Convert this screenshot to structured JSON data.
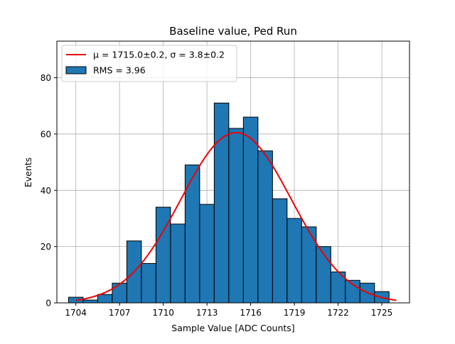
{
  "chart_data": {
    "type": "bar",
    "title": "Baseline value, Ped Run",
    "xlabel": "Sample Value [ADC Counts]",
    "ylabel": "Events",
    "xlim": [
      1702.7,
      1726.9
    ],
    "ylim": [
      0,
      93
    ],
    "grid": true,
    "xticks": [
      1704,
      1707,
      1710,
      1713,
      1716,
      1719,
      1722,
      1725
    ],
    "yticks": [
      0,
      20,
      40,
      60,
      80
    ],
    "bin_width": 1,
    "bins": [
      {
        "x": 1704,
        "count": 2
      },
      {
        "x": 1705,
        "count": 1
      },
      {
        "x": 1706,
        "count": 3
      },
      {
        "x": 1707,
        "count": 7
      },
      {
        "x": 1708,
        "count": 22
      },
      {
        "x": 1709,
        "count": 14
      },
      {
        "x": 1710,
        "count": 34
      },
      {
        "x": 1711,
        "count": 28
      },
      {
        "x": 1712,
        "count": 49
      },
      {
        "x": 1713,
        "count": 35
      },
      {
        "x": 1714,
        "count": 71
      },
      {
        "x": 1715,
        "count": 62
      },
      {
        "x": 1716,
        "count": 66
      },
      {
        "x": 1717,
        "count": 54
      },
      {
        "x": 1718,
        "count": 37
      },
      {
        "x": 1719,
        "count": 30
      },
      {
        "x": 1720,
        "count": 27
      },
      {
        "x": 1721,
        "count": 20
      },
      {
        "x": 1722,
        "count": 11
      },
      {
        "x": 1723,
        "count": 8
      },
      {
        "x": 1724,
        "count": 7
      },
      {
        "x": 1725,
        "count": 4
      }
    ],
    "fit": {
      "type": "gaussian",
      "mu": 1715.0,
      "sigma": 3.8,
      "amplitude": 60.5,
      "x_range": [
        1704,
        1726
      ]
    },
    "legend": {
      "position": "top-left",
      "entries": [
        {
          "label": "μ = 1715.0±0.2, σ = 3.8±0.2",
          "kind": "line",
          "color": "#ee0000"
        },
        {
          "label": "RMS = 3.96",
          "kind": "patch",
          "color": "#1f77b4"
        }
      ]
    },
    "colors": {
      "bar_fill": "#1f77b4",
      "bar_edge": "#000000",
      "fit_line": "#ee0000",
      "grid": "#b0b0b0"
    }
  }
}
